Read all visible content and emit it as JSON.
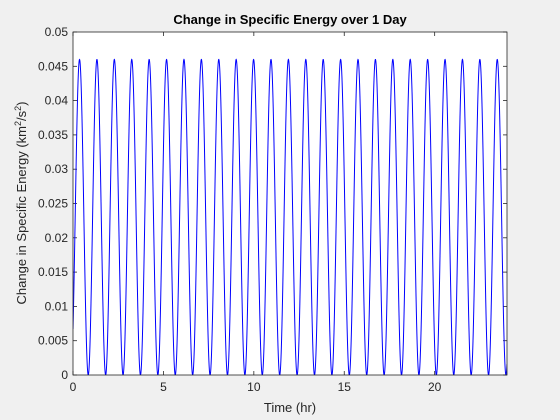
{
  "chart_data": {
    "type": "line",
    "title": "Change in Specific Energy over 1 Day",
    "xlabel": "Time (hr)",
    "ylabel_main": "Change in Specific Energy (km",
    "ylabel_sup1": "2",
    "ylabel_mid": "/s",
    "ylabel_sup2": "2",
    "ylabel_end": ")",
    "xlim": [
      0,
      24
    ],
    "ylim": [
      0,
      0.05
    ],
    "xticks": [
      0,
      5,
      10,
      15,
      20
    ],
    "xtick_labels": [
      "0",
      "5",
      "10",
      "15",
      "20"
    ],
    "yticks": [
      0,
      0.005,
      0.01,
      0.015,
      0.02,
      0.025,
      0.03,
      0.035,
      0.04,
      0.045,
      0.05
    ],
    "ytick_labels": [
      "0",
      "0.005",
      "0.01",
      "0.015",
      "0.02",
      "0.025",
      "0.03",
      "0.035",
      "0.04",
      "0.045",
      "0.05"
    ],
    "grid": false,
    "series": [
      {
        "color": "#0000ff",
        "function": "oscillation",
        "amplitude_max": 0.046,
        "amplitude_min": 0,
        "period_hr": 0.9625,
        "phase_start_hr": -0.12,
        "x_range": [
          0,
          24
        ]
      }
    ]
  }
}
